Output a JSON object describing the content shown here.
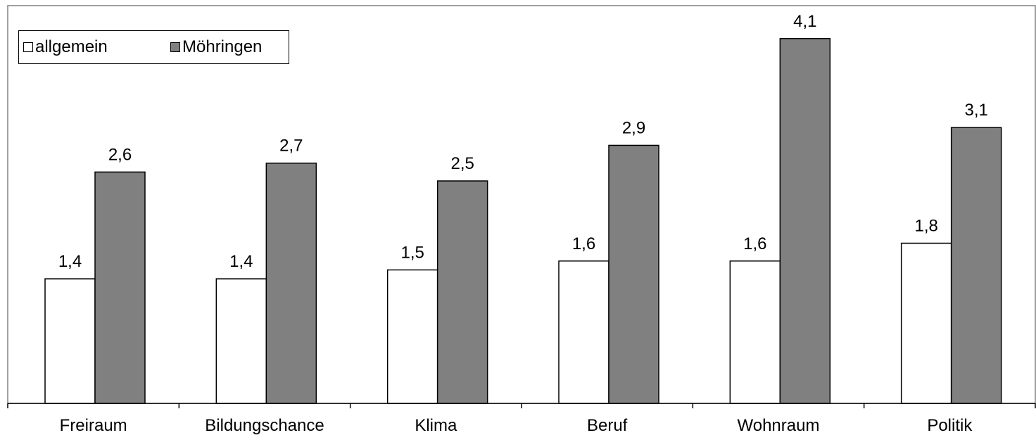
{
  "chart_data": {
    "type": "bar",
    "categories": [
      "Freiraum",
      "Bildungschance",
      "Klima",
      "Beruf",
      "Wohnraum",
      "Politik"
    ],
    "series": [
      {
        "name": "allgemein",
        "values": [
          1.4,
          1.4,
          1.5,
          1.6,
          1.6,
          1.8
        ],
        "labels": [
          "1,4",
          "1,4",
          "1,5",
          "1,6",
          "1,6",
          "1,8"
        ],
        "color": "#ffffff"
      },
      {
        "name": "Möhringen",
        "values": [
          2.6,
          2.7,
          2.5,
          2.9,
          4.1,
          3.1
        ],
        "labels": [
          "2,6",
          "2,7",
          "2,5",
          "2,9",
          "4,1",
          "3,1"
        ],
        "color": "#808080"
      }
    ],
    "ylim": [
      0,
      4.47
    ],
    "grid": false,
    "legend": "top-left",
    "title": "",
    "xlabel": "",
    "ylabel": ""
  }
}
